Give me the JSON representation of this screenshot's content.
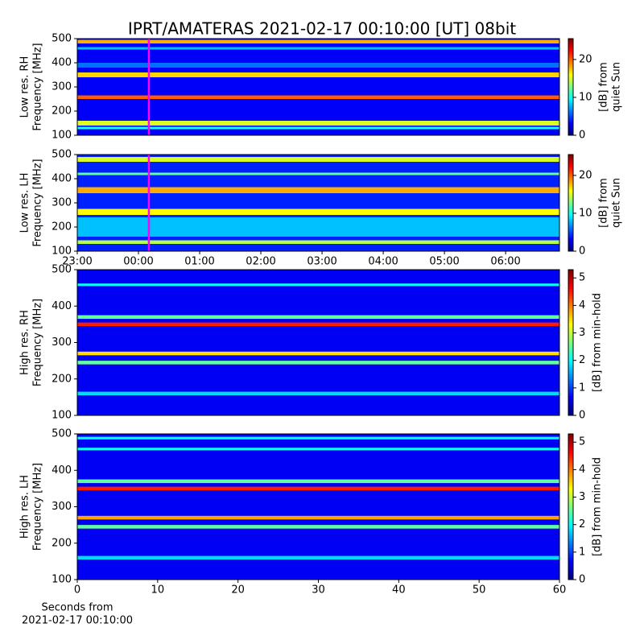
{
  "title": "IPRT/AMATERAS 2021-02-17 00:10:00 [UT]   08bit",
  "chart_data": [
    {
      "type": "spectrogram",
      "colormap": "jet",
      "ylabel": [
        "Low res. RH",
        "Frequency [MHz]"
      ],
      "xlim": [
        23,
        30.88
      ],
      "ylim": [
        100,
        500
      ],
      "yticks": [
        100,
        200,
        300,
        400,
        500
      ],
      "colorbar_label": [
        "[dB] from",
        "quiet Sun"
      ],
      "clim": [
        0,
        25.5
      ],
      "cticks": [
        0,
        10,
        20
      ],
      "background": 3,
      "bands": [
        {
          "range": [
            480,
            495
          ],
          "level": 18
        },
        {
          "range": [
            455,
            465
          ],
          "level": 8
        },
        {
          "range": [
            380,
            400
          ],
          "level": 6
        },
        {
          "range": [
            340,
            360
          ],
          "level": 17
        },
        {
          "range": [
            250,
            265
          ],
          "level": 20
        },
        {
          "range": [
            140,
            160
          ],
          "level": 15
        },
        {
          "range": [
            125,
            135
          ],
          "level": 10
        }
      ],
      "marker_x": 24.17,
      "marker_color": "#ff00ff"
    },
    {
      "type": "spectrogram",
      "colormap": "jet",
      "ylabel": [
        "Low res. LH",
        "Frequency [MHz]"
      ],
      "xlim": [
        23,
        30.88
      ],
      "ylim": [
        100,
        500
      ],
      "yticks": [
        100,
        200,
        300,
        400,
        500
      ],
      "xticks": [
        {
          "value": 23,
          "label": "23:00"
        },
        {
          "value": 24,
          "label": "00:00"
        },
        {
          "value": 25,
          "label": "01:00"
        },
        {
          "value": 26,
          "label": "02:00"
        },
        {
          "value": 27,
          "label": "03:00"
        },
        {
          "value": 28,
          "label": "04:00"
        },
        {
          "value": 29,
          "label": "05:00"
        },
        {
          "value": 30,
          "label": "06:00"
        }
      ],
      "colorbar_label": [
        "[dB] from",
        "quiet Sun"
      ],
      "clim": [
        0,
        25.5
      ],
      "cticks": [
        0,
        10,
        20
      ],
      "background": 4,
      "bands": [
        {
          "range": [
            470,
            490
          ],
          "level": 15
        },
        {
          "range": [
            415,
            425
          ],
          "level": 12
        },
        {
          "range": [
            340,
            365
          ],
          "level": 18
        },
        {
          "range": [
            250,
            275
          ],
          "level": 16
        },
        {
          "range": [
            160,
            240
          ],
          "level": 8
        },
        {
          "range": [
            130,
            145
          ],
          "level": 14
        }
      ],
      "marker_x": 24.17,
      "marker_color": "#ff00ff"
    },
    {
      "type": "spectrogram",
      "colormap": "jet",
      "ylabel": [
        "High res. RH",
        "Frequency [MHz]"
      ],
      "xlim": [
        0,
        60
      ],
      "ylim": [
        100,
        500
      ],
      "yticks": [
        100,
        200,
        300,
        400,
        500
      ],
      "colorbar_label": [
        "[dB] from min-hold"
      ],
      "clim": [
        0,
        5.3
      ],
      "cticks": [
        0,
        1,
        2,
        3,
        4,
        5
      ],
      "background": 0.6,
      "bands": [
        {
          "range": [
            455,
            462
          ],
          "level": 2
        },
        {
          "range": [
            365,
            375
          ],
          "level": 2.5
        },
        {
          "range": [
            345,
            355
          ],
          "level": 4.5
        },
        {
          "range": [
            265,
            275
          ],
          "level": 3.5
        },
        {
          "range": [
            240,
            250
          ],
          "level": 2.5
        },
        {
          "range": [
            155,
            165
          ],
          "level": 1.8
        }
      ]
    },
    {
      "type": "spectrogram",
      "colormap": "jet",
      "ylabel": [
        "High res. LH",
        "Frequency [MHz]"
      ],
      "xlim": [
        0,
        60
      ],
      "ylim": [
        100,
        500
      ],
      "yticks": [
        100,
        200,
        300,
        400,
        500
      ],
      "xticks": [
        0,
        10,
        20,
        30,
        40,
        50,
        60
      ],
      "xlabel": [
        "Seconds from",
        "2021-02-17 00:10:00"
      ],
      "colorbar_label": [
        "[dB] from min-hold"
      ],
      "clim": [
        0,
        5.3
      ],
      "cticks": [
        0,
        1,
        2,
        3,
        4,
        5
      ],
      "background": 0.6,
      "bands": [
        {
          "range": [
            485,
            492
          ],
          "level": 2
        },
        {
          "range": [
            455,
            462
          ],
          "level": 2
        },
        {
          "range": [
            365,
            375
          ],
          "level": 2.5
        },
        {
          "range": [
            345,
            355
          ],
          "level": 4.5
        },
        {
          "range": [
            265,
            275
          ],
          "level": 3.8
        },
        {
          "range": [
            240,
            250
          ],
          "level": 2.5
        },
        {
          "range": [
            155,
            165
          ],
          "level": 1.8
        }
      ]
    }
  ]
}
